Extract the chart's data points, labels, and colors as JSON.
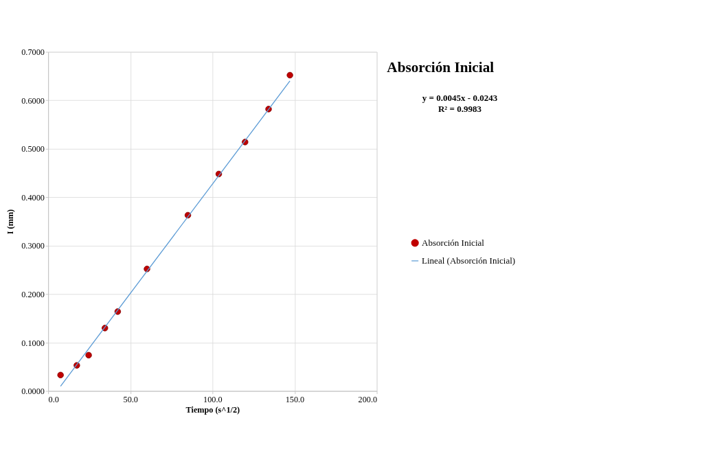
{
  "chart_data": {
    "type": "scatter",
    "title": "Absorción  Inicial",
    "xlabel": "Tiempo (s^1/2)",
    "ylabel": "I (mm)",
    "annotations": [
      "y = 0.0045x - 0.0243",
      "R² = 0.9983"
    ],
    "xlim": [
      0,
      200
    ],
    "ylim": [
      0,
      0.7
    ],
    "xticks": [
      {
        "value": 0,
        "label": "0.0"
      },
      {
        "value": 50,
        "label": "50.0"
      },
      {
        "value": 100,
        "label": "100.0"
      },
      {
        "value": 150,
        "label": "150.0"
      },
      {
        "value": 200,
        "label": "200.0"
      }
    ],
    "yticks": [
      {
        "value": 0,
        "label": "0.0000"
      },
      {
        "value": 0.1,
        "label": "0.1000"
      },
      {
        "value": 0.2,
        "label": "0.2000"
      },
      {
        "value": 0.3,
        "label": "0.3000"
      },
      {
        "value": 0.4,
        "label": "0.4000"
      },
      {
        "value": 0.5,
        "label": "0.5000"
      },
      {
        "value": 0.6,
        "label": "0.6000"
      },
      {
        "value": 0.7,
        "label": "0.7000"
      }
    ],
    "grid": true,
    "legend": "right",
    "series": [
      {
        "name": "Absorción Inicial",
        "marker": "circle",
        "color": "#c00000",
        "x": [
          7.5,
          17.4,
          24.6,
          34.5,
          42.3,
          60.1,
          85.0,
          103.8,
          119.8,
          134.1,
          147.1
        ],
        "values": [
          0.033,
          0.053,
          0.074,
          0.13,
          0.164,
          0.252,
          0.363,
          0.448,
          0.514,
          0.582,
          0.652
        ]
      },
      {
        "name": "Lineal (Absorción Inicial)",
        "type": "line",
        "color": "#5b9bd5",
        "x": [
          7.5,
          147.1
        ],
        "values": [
          0.01,
          0.64
        ]
      }
    ]
  }
}
